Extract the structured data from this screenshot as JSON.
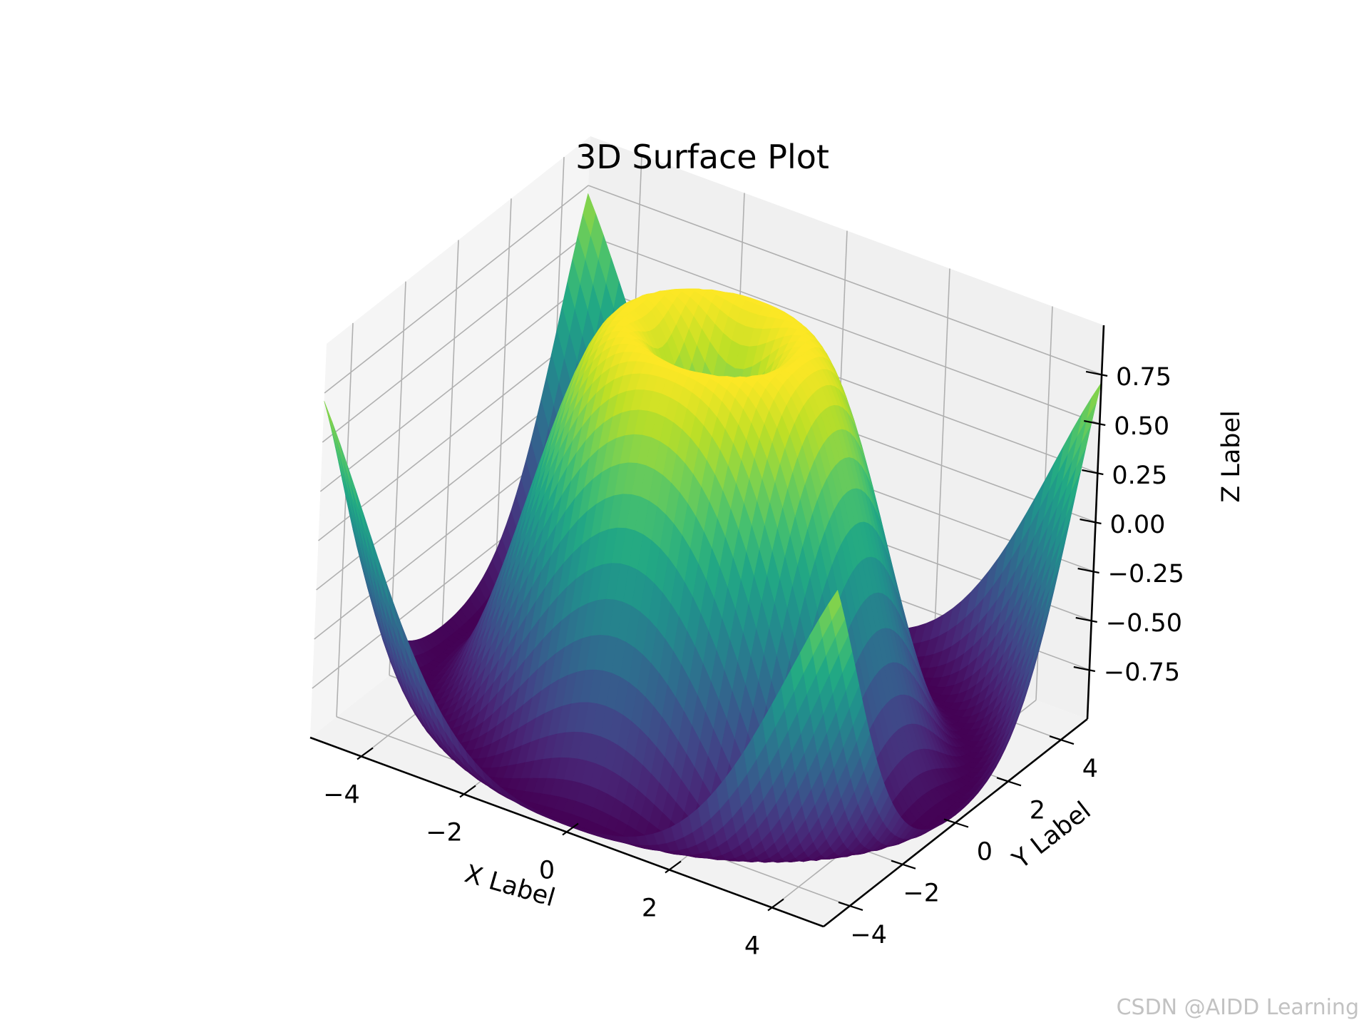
{
  "chart_data": {
    "type": "surface",
    "title": "3D Surface Plot",
    "function": "z = sin(sqrt(x^2 + y^2))",
    "colormap": "viridis",
    "xlabel": "X Label",
    "ylabel": "Y Label",
    "zlabel": "Z Label",
    "xlim": [
      -5,
      5
    ],
    "ylim": [
      -5,
      5
    ],
    "zlim": [
      -1,
      1
    ],
    "x_ticks": [
      "−4",
      "−2",
      "0",
      "2",
      "4"
    ],
    "y_ticks": [
      "−4",
      "−2",
      "0",
      "2",
      "4"
    ],
    "z_ticks": [
      "−0.75",
      "−0.50",
      "−0.25",
      "0.00",
      "0.25",
      "0.50",
      "0.75"
    ],
    "x_tick_values": [
      -4,
      -2,
      0,
      2,
      4
    ],
    "y_tick_values": [
      -4,
      -2,
      0,
      2,
      4
    ],
    "z_tick_values": [
      -0.75,
      -0.5,
      -0.25,
      0,
      0.25,
      0.5,
      0.75
    ],
    "grid": true
  },
  "watermark": "CSDN @AIDD Learning"
}
